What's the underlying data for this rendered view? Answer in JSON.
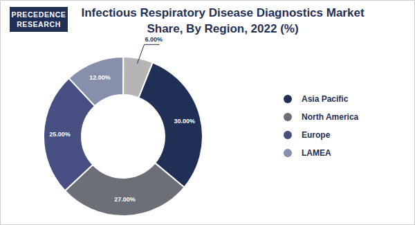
{
  "chart_data": {
    "type": "pie",
    "title": "Infectious Respiratory Disease Diagnostics Market Share, By Region, 2022 (%)",
    "logo": [
      "PRECEDENCE",
      "RESEARCH"
    ],
    "categories": [
      "Asia Pacific",
      "North America",
      "Europe",
      "LAMEA",
      null
    ],
    "values": [
      30,
      27,
      25,
      12,
      6
    ],
    "value_labels": [
      "30.00%",
      "27.00%",
      "25.00%",
      "12.00%",
      "6.00%"
    ],
    "colors": [
      "#1f2f55",
      "#6d6f78",
      "#464e82",
      "#8690ad",
      "#b5b5b5"
    ],
    "data_labels": true,
    "legend": "right"
  }
}
